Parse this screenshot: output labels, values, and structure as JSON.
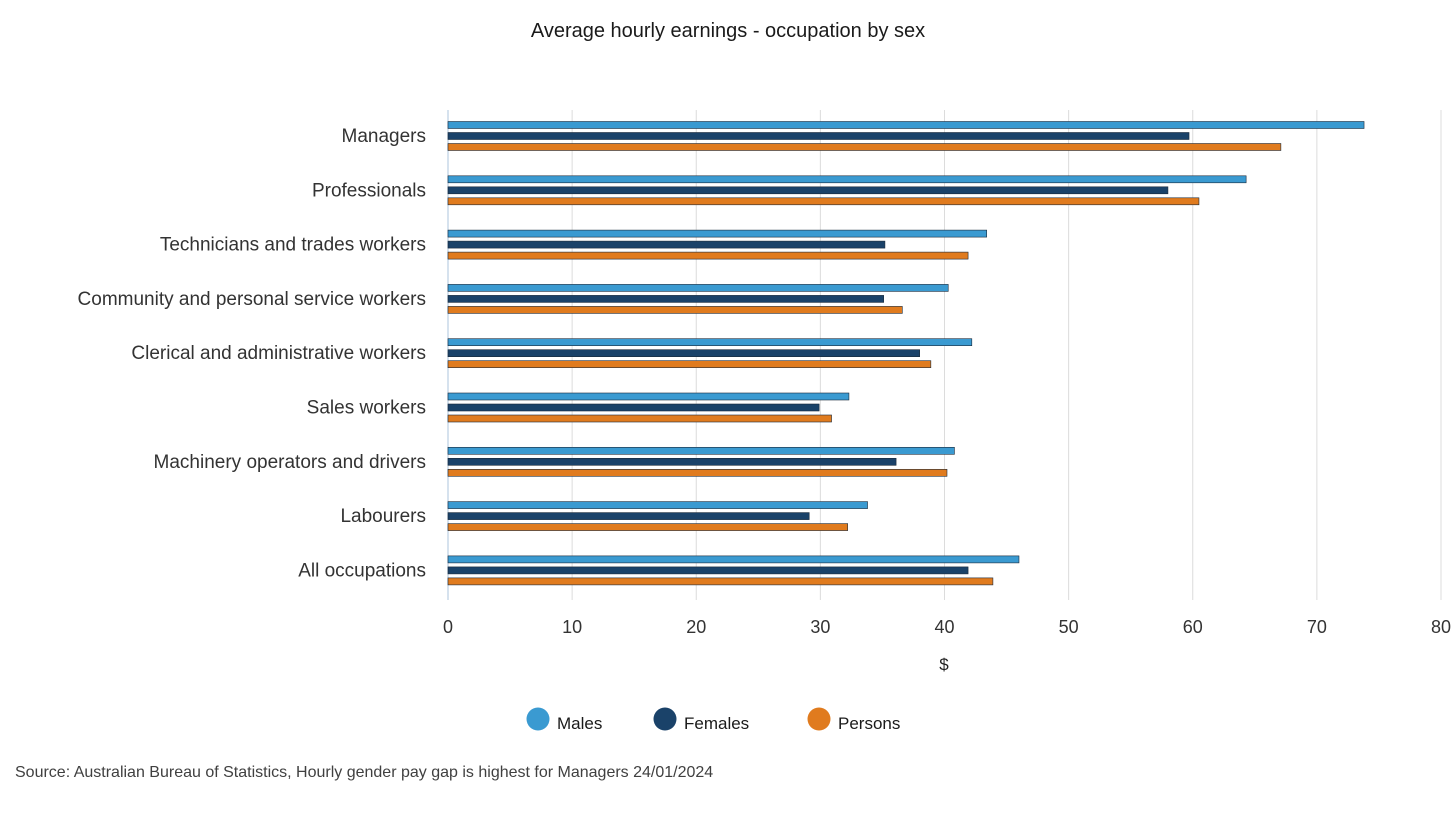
{
  "chart_data": {
    "type": "bar",
    "orientation": "horizontal",
    "title": "Average hourly earnings - occupation by sex",
    "xlabel": "$",
    "ylabel": "",
    "xlim": [
      0,
      80
    ],
    "x_ticks": [
      0,
      10,
      20,
      30,
      40,
      50,
      60,
      70,
      80
    ],
    "grid": "vertical",
    "legend_position": "bottom-center",
    "categories": [
      "Managers",
      "Professionals",
      "Technicians and trades workers",
      "Community and personal service workers",
      "Clerical and administrative workers",
      "Sales workers",
      "Machinery operators and drivers",
      "Labourers",
      "All occupations"
    ],
    "series": [
      {
        "name": "Males",
        "color": "#3a9ad1",
        "values": [
          73.8,
          64.3,
          43.4,
          40.3,
          42.2,
          32.3,
          40.8,
          33.8,
          46.0
        ]
      },
      {
        "name": "Females",
        "color": "#1a4269",
        "values": [
          59.7,
          58.0,
          35.2,
          35.1,
          38.0,
          29.9,
          36.1,
          29.1,
          41.9
        ]
      },
      {
        "name": "Persons",
        "color": "#e07b1e",
        "values": [
          67.1,
          60.5,
          41.9,
          36.6,
          38.9,
          30.9,
          40.2,
          32.2,
          43.9
        ]
      }
    ]
  },
  "source": "Source: Australian Bureau of Statistics, Hourly gender pay gap is highest for Managers 24/01/2024"
}
